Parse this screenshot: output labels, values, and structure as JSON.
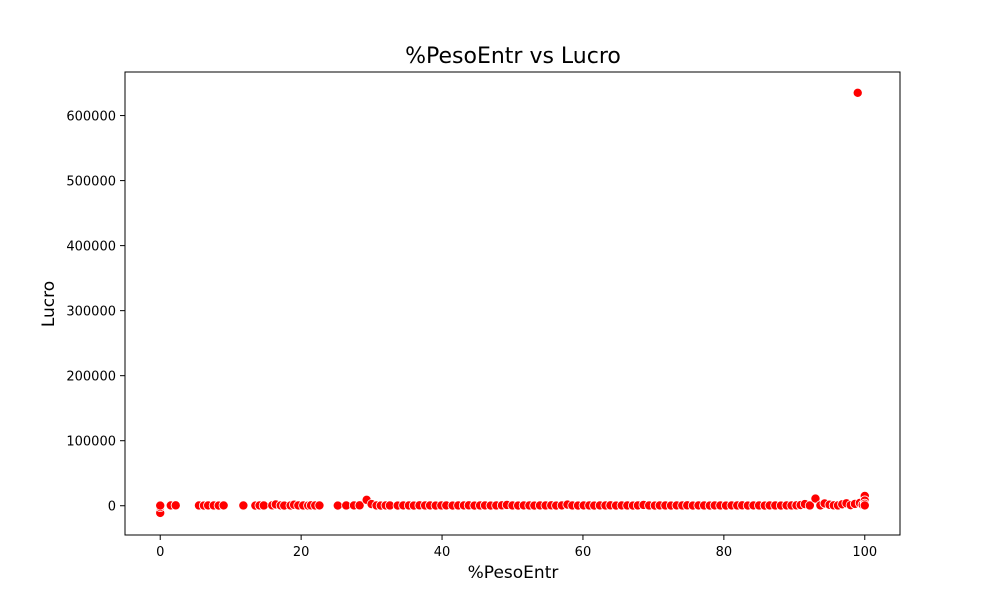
{
  "chart_data": {
    "type": "scatter",
    "title": "%PesoEntr vs Lucro",
    "xlabel": "%PesoEntr",
    "ylabel": "Lucro",
    "xlim": [
      -5,
      105
    ],
    "ylim": [
      -45000,
      667000
    ],
    "xticks": [
      0,
      20,
      40,
      60,
      80,
      100
    ],
    "yticks": [
      0,
      100000,
      200000,
      300000,
      400000,
      500000,
      600000
    ],
    "grid": false,
    "colors": {
      "marker": "#ff0000",
      "marker_edge": "#ffffff",
      "axes": "#000000"
    },
    "series": [
      {
        "points": [
          [
            0,
            -11000
          ],
          [
            0,
            -2000
          ],
          [
            0,
            300
          ],
          [
            1.5,
            500
          ],
          [
            2.2,
            600
          ],
          [
            5.5,
            400
          ],
          [
            6.2,
            300
          ],
          [
            6.8,
            500
          ],
          [
            7.6,
            400
          ],
          [
            8.3,
            300
          ],
          [
            9.0,
            500
          ],
          [
            11.8,
            400
          ],
          [
            13.5,
            300
          ],
          [
            14.1,
            500
          ],
          [
            14.7,
            400
          ],
          [
            15.9,
            600
          ],
          [
            16.4,
            2000
          ],
          [
            17.1,
            500
          ],
          [
            17.6,
            300
          ],
          [
            18.5,
            400
          ],
          [
            19.0,
            1500
          ],
          [
            19.6,
            500
          ],
          [
            20.3,
            400
          ],
          [
            21.0,
            300
          ],
          [
            21.4,
            600
          ],
          [
            22.0,
            400
          ],
          [
            22.6,
            500
          ],
          [
            25.2,
            300
          ],
          [
            26.4,
            400
          ],
          [
            27.5,
            500
          ],
          [
            28.3,
            600
          ],
          [
            29.3,
            9000
          ],
          [
            30.0,
            2500
          ],
          [
            30.7,
            400
          ],
          [
            31.3,
            300
          ],
          [
            32.0,
            500
          ],
          [
            32.6,
            400
          ],
          [
            33.7,
            300
          ],
          [
            34.5,
            500
          ],
          [
            35.3,
            400
          ],
          [
            36.0,
            300
          ],
          [
            36.8,
            600
          ],
          [
            37.6,
            400
          ],
          [
            38.3,
            500
          ],
          [
            39.1,
            300
          ],
          [
            39.9,
            400
          ],
          [
            40.6,
            500
          ],
          [
            41.5,
            300
          ],
          [
            42.3,
            400
          ],
          [
            43.1,
            500
          ],
          [
            43.8,
            600
          ],
          [
            44.6,
            300
          ],
          [
            45.4,
            400
          ],
          [
            46.1,
            500
          ],
          [
            46.9,
            300
          ],
          [
            47.7,
            400
          ],
          [
            48.5,
            600
          ],
          [
            49.2,
            1200
          ],
          [
            50.0,
            400
          ],
          [
            50.8,
            300
          ],
          [
            51.6,
            500
          ],
          [
            52.4,
            400
          ],
          [
            53.1,
            300
          ],
          [
            53.9,
            500
          ],
          [
            54.7,
            400
          ],
          [
            55.5,
            600
          ],
          [
            56.2,
            300
          ],
          [
            57.0,
            500
          ],
          [
            57.8,
            1800
          ],
          [
            58.5,
            400
          ],
          [
            59.3,
            300
          ],
          [
            60.1,
            500
          ],
          [
            60.9,
            400
          ],
          [
            61.6,
            300
          ],
          [
            62.4,
            500
          ],
          [
            63.2,
            400
          ],
          [
            63.9,
            600
          ],
          [
            64.7,
            300
          ],
          [
            65.5,
            500
          ],
          [
            66.3,
            400
          ],
          [
            67.1,
            300
          ],
          [
            67.8,
            500
          ],
          [
            68.6,
            1200
          ],
          [
            69.4,
            400
          ],
          [
            70.2,
            300
          ],
          [
            70.9,
            500
          ],
          [
            71.7,
            400
          ],
          [
            72.5,
            300
          ],
          [
            73.3,
            500
          ],
          [
            74.1,
            400
          ],
          [
            74.8,
            600
          ],
          [
            75.6,
            300
          ],
          [
            76.4,
            500
          ],
          [
            77.2,
            400
          ],
          [
            78.0,
            300
          ],
          [
            78.7,
            500
          ],
          [
            79.5,
            400
          ],
          [
            80.3,
            300
          ],
          [
            81.1,
            500
          ],
          [
            81.9,
            400
          ],
          [
            82.6,
            600
          ],
          [
            83.4,
            300
          ],
          [
            84.2,
            500
          ],
          [
            85.0,
            400
          ],
          [
            85.8,
            300
          ],
          [
            86.5,
            500
          ],
          [
            87.3,
            400
          ],
          [
            88.1,
            300
          ],
          [
            88.9,
            500
          ],
          [
            89.6,
            400
          ],
          [
            90.3,
            600
          ],
          [
            90.9,
            1000
          ],
          [
            91.5,
            2500
          ],
          [
            92.2,
            400
          ],
          [
            93.0,
            11000
          ],
          [
            93.7,
            500
          ],
          [
            94.3,
            3500
          ],
          [
            95.0,
            1500
          ],
          [
            95.6,
            600
          ],
          [
            96.2,
            400
          ],
          [
            96.8,
            2200
          ],
          [
            97.4,
            3800
          ],
          [
            98.0,
            900
          ],
          [
            98.6,
            2800
          ],
          [
            99.0,
            635000
          ],
          [
            99.3,
            4200
          ],
          [
            99.7,
            1500
          ],
          [
            100,
            15000
          ],
          [
            100,
            8000
          ],
          [
            100,
            3000
          ],
          [
            100,
            500
          ]
        ]
      }
    ]
  }
}
